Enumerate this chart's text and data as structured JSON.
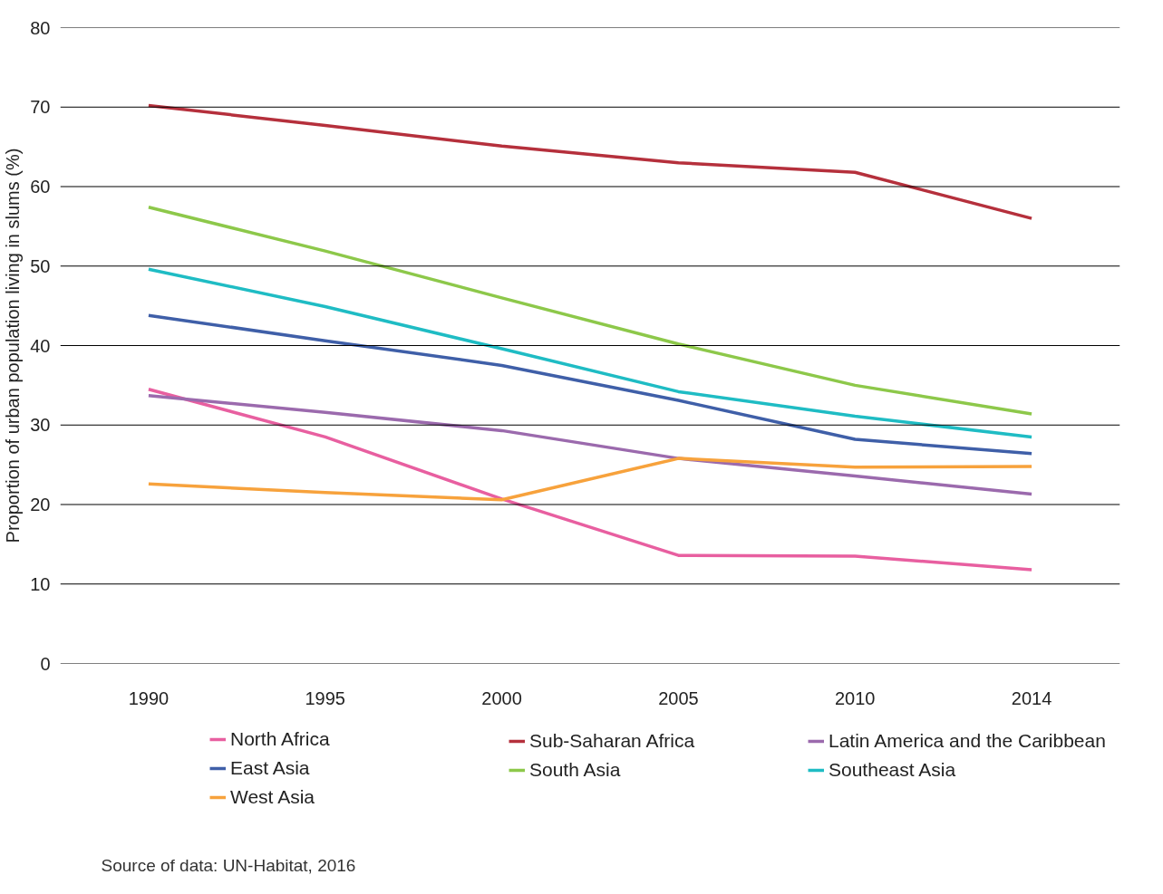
{
  "chart_data": {
    "type": "line",
    "ylabel": "Proportion of urban population living in slums (%)",
    "categories": [
      "1990",
      "1995",
      "2000",
      "2005",
      "2010",
      "2014"
    ],
    "ylim": [
      0,
      80
    ],
    "yticks": [
      0,
      10,
      20,
      30,
      40,
      50,
      60,
      70,
      80
    ],
    "grid": "y",
    "legend": "bottom",
    "line_style": "solid",
    "marker": "none",
    "series": [
      {
        "name": "North Africa",
        "color": "#e85fa0",
        "values": [
          34.5,
          28.5,
          20.7,
          13.6,
          13.5,
          11.8
        ]
      },
      {
        "name": "Sub-Saharan Africa",
        "color": "#b5303c",
        "values": [
          70.2,
          67.7,
          65.1,
          63.0,
          61.8,
          56.0
        ]
      },
      {
        "name": "Latin America and the Caribbean",
        "color": "#9b6aad",
        "values": [
          33.7,
          31.6,
          29.3,
          25.8,
          23.6,
          21.3
        ]
      },
      {
        "name": "East Asia",
        "color": "#3f5fa8",
        "values": [
          43.8,
          40.6,
          37.5,
          33.1,
          28.2,
          26.4
        ]
      },
      {
        "name": "South Asia",
        "color": "#8dc84a",
        "values": [
          57.4,
          51.9,
          46.0,
          40.2,
          35.0,
          31.4
        ]
      },
      {
        "name": "Southeast Asia",
        "color": "#1fbcc4",
        "values": [
          49.6,
          44.9,
          39.6,
          34.2,
          31.1,
          28.5
        ]
      },
      {
        "name": "West Asia",
        "color": "#f7a23c",
        "values": [
          22.6,
          21.5,
          20.6,
          25.8,
          24.7,
          24.8
        ]
      }
    ],
    "annotations": [
      "Source of data: UN-Habitat, 2016"
    ]
  }
}
